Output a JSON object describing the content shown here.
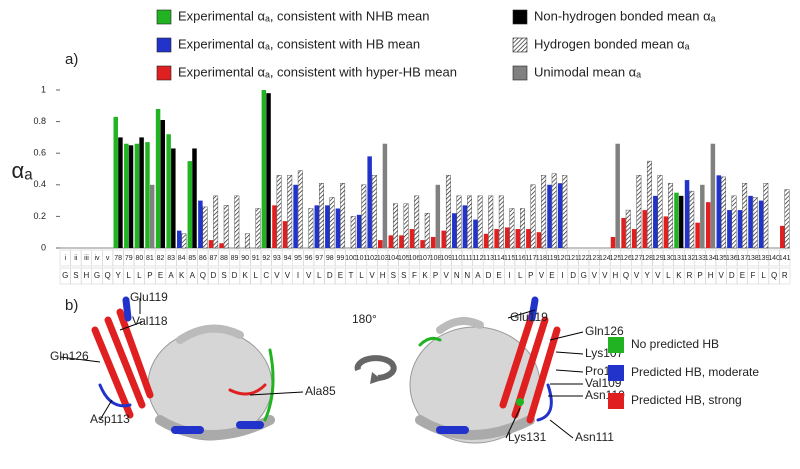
{
  "chart_data": {
    "type": "bar",
    "y_label": "αₐ",
    "categories": [
      "i",
      "ii",
      "iii",
      "iv",
      "v",
      "78",
      "79",
      "80",
      "81",
      "82",
      "83",
      "84",
      "85",
      "86",
      "87",
      "88",
      "89",
      "90",
      "91",
      "92",
      "93",
      "94",
      "95",
      "96",
      "97",
      "98",
      "99",
      "100",
      "101",
      "102",
      "103",
      "104",
      "105",
      "106",
      "107",
      "108",
      "109",
      "110",
      "111",
      "112",
      "113",
      "114",
      "115",
      "116",
      "117",
      "118",
      "119",
      "120",
      "121",
      "122",
      "123",
      "124",
      "125",
      "126",
      "127",
      "128",
      "129",
      "130",
      "131",
      "132",
      "133",
      "134",
      "135",
      "136",
      "137",
      "138",
      "139",
      "140",
      "141"
    ],
    "sequence": [
      "G",
      "S",
      "H",
      "G",
      "Q",
      "Y",
      "L",
      "L",
      "P",
      "E",
      "A",
      "K",
      "A",
      "Q",
      "D",
      "S",
      "D",
      "K",
      "L",
      "C",
      "V",
      "V",
      "I",
      "V",
      "L",
      "D",
      "E",
      "T",
      "L",
      "V",
      "H",
      "S",
      "S",
      "F",
      "K",
      "P",
      "V",
      "N",
      "N",
      "A",
      "D",
      "E",
      "I",
      "L",
      "P",
      "V",
      "E",
      "I",
      "D",
      "G",
      "V",
      "V",
      "H",
      "Q",
      "V",
      "Y",
      "V",
      "L",
      "K",
      "R",
      "P",
      "H",
      "V",
      "D",
      "E",
      "F",
      "L",
      "Q",
      "R"
    ],
    "ylim": [
      0,
      1
    ],
    "yticks": [
      0,
      0.2,
      0.4,
      0.6,
      0.8,
      1
    ],
    "series": [
      {
        "name": "Experimental αₐ, consistent with NHB mean",
        "color": "#22b322",
        "role": "experimental",
        "values": [
          null,
          null,
          null,
          null,
          null,
          0.83,
          0.66,
          0.66,
          0.67,
          0.88,
          0.72,
          null,
          0.55,
          null,
          null,
          null,
          null,
          null,
          null,
          1.0,
          null,
          null,
          null,
          null,
          null,
          null,
          null,
          null,
          null,
          null,
          null,
          null,
          null,
          null,
          null,
          null,
          null,
          null,
          null,
          null,
          null,
          null,
          null,
          null,
          null,
          null,
          null,
          null,
          null,
          null,
          null,
          null,
          null,
          null,
          null,
          null,
          null,
          null,
          0.35,
          null,
          null,
          null,
          null,
          null,
          null,
          null,
          null,
          null,
          null
        ]
      },
      {
        "name": "Experimental αₐ, consistent with HB mean",
        "color": "#2233cc",
        "role": "experimental",
        "values": [
          null,
          null,
          null,
          null,
          null,
          null,
          null,
          null,
          null,
          null,
          null,
          0.11,
          null,
          0.3,
          null,
          null,
          null,
          null,
          null,
          null,
          null,
          null,
          0.4,
          null,
          0.27,
          0.27,
          0.25,
          null,
          0.21,
          0.58,
          null,
          null,
          null,
          null,
          null,
          null,
          null,
          0.22,
          0.27,
          0.18,
          null,
          null,
          null,
          null,
          null,
          null,
          0.4,
          0.41,
          null,
          null,
          null,
          null,
          null,
          null,
          null,
          null,
          0.33,
          null,
          null,
          0.43,
          null,
          null,
          0.46,
          0.24,
          0.24,
          0.33,
          0.3,
          null,
          null
        ]
      },
      {
        "name": "Experimental αₐ, consistent with hyper-HB mean",
        "color": "#e02020",
        "role": "experimental",
        "values": [
          null,
          null,
          null,
          null,
          null,
          null,
          null,
          null,
          null,
          null,
          null,
          null,
          null,
          null,
          0.05,
          0.03,
          null,
          null,
          null,
          null,
          0.27,
          0.17,
          null,
          null,
          null,
          null,
          null,
          null,
          null,
          null,
          0.05,
          0.08,
          0.08,
          0.12,
          0.05,
          0.07,
          0.11,
          null,
          null,
          null,
          0.09,
          0.12,
          0.13,
          0.12,
          0.12,
          0.1,
          null,
          null,
          null,
          null,
          null,
          null,
          0.07,
          0.19,
          0.12,
          0.24,
          null,
          0.2,
          null,
          null,
          0.16,
          0.29,
          null,
          null,
          null,
          null,
          null,
          null,
          0.14
        ]
      },
      {
        "name": "Non-hydrogen bonded mean αₐ",
        "color": "#000000",
        "role": "mean",
        "values": [
          null,
          null,
          null,
          null,
          null,
          0.7,
          0.65,
          0.7,
          null,
          0.81,
          0.63,
          null,
          0.63,
          null,
          null,
          null,
          null,
          null,
          null,
          0.98,
          null,
          null,
          null,
          null,
          null,
          null,
          null,
          null,
          null,
          null,
          null,
          null,
          null,
          null,
          null,
          null,
          null,
          null,
          null,
          null,
          null,
          null,
          null,
          null,
          null,
          null,
          null,
          null,
          null,
          null,
          null,
          null,
          null,
          null,
          null,
          null,
          null,
          null,
          0.33,
          null,
          null,
          null,
          null,
          null,
          null,
          null,
          null,
          null,
          null
        ]
      },
      {
        "name": "Hydrogen bonded mean αₐ",
        "color": "#ffffff",
        "pattern": "hatch",
        "role": "mean",
        "values": [
          null,
          null,
          null,
          null,
          null,
          null,
          null,
          null,
          null,
          null,
          null,
          0.09,
          null,
          0.26,
          0.33,
          0.27,
          0.33,
          0.09,
          0.25,
          null,
          0.46,
          0.46,
          0.49,
          0.25,
          0.41,
          0.32,
          0.41,
          0.2,
          0.4,
          0.46,
          null,
          0.28,
          0.28,
          0.33,
          0.22,
          null,
          0.46,
          0.33,
          0.33,
          0.33,
          0.33,
          0.33,
          0.25,
          0.25,
          0.4,
          0.46,
          0.47,
          0.46,
          null,
          null,
          null,
          null,
          null,
          0.24,
          0.46,
          0.55,
          0.46,
          0.41,
          null,
          0.36,
          null,
          null,
          0.45,
          0.33,
          0.41,
          0.32,
          0.41,
          null,
          0.37
        ]
      },
      {
        "name": "Unimodal mean αₐ",
        "color": "#808080",
        "role": "mean",
        "values": [
          null,
          null,
          null,
          null,
          null,
          null,
          null,
          null,
          0.4,
          null,
          null,
          null,
          null,
          null,
          null,
          null,
          null,
          null,
          null,
          null,
          null,
          null,
          null,
          null,
          null,
          null,
          null,
          null,
          null,
          null,
          0.66,
          null,
          null,
          null,
          null,
          0.4,
          null,
          null,
          null,
          null,
          null,
          null,
          null,
          null,
          null,
          null,
          null,
          null,
          null,
          null,
          null,
          null,
          0.66,
          null,
          null,
          null,
          null,
          null,
          null,
          null,
          0.4,
          0.66,
          null,
          null,
          null,
          null,
          null,
          null,
          null
        ]
      }
    ]
  },
  "panel_labels": [
    "a)",
    "b)"
  ],
  "structure": {
    "rotation": "180°",
    "left_labels": [
      "Glu119",
      "Val118",
      "Gln126",
      "Asp113",
      "Ala85"
    ],
    "right_labels": [
      "Glu119",
      "Gln126",
      "Lys107",
      "Pro108",
      "Val109",
      "Asn110",
      "Asn111",
      "Lys131"
    ],
    "legend": [
      {
        "name": "No predicted HB",
        "color": "#22b322"
      },
      {
        "name": "Predicted HB, moderate",
        "color": "#2233cc"
      },
      {
        "name": "Predicted HB, strong",
        "color": "#e02020"
      }
    ]
  }
}
